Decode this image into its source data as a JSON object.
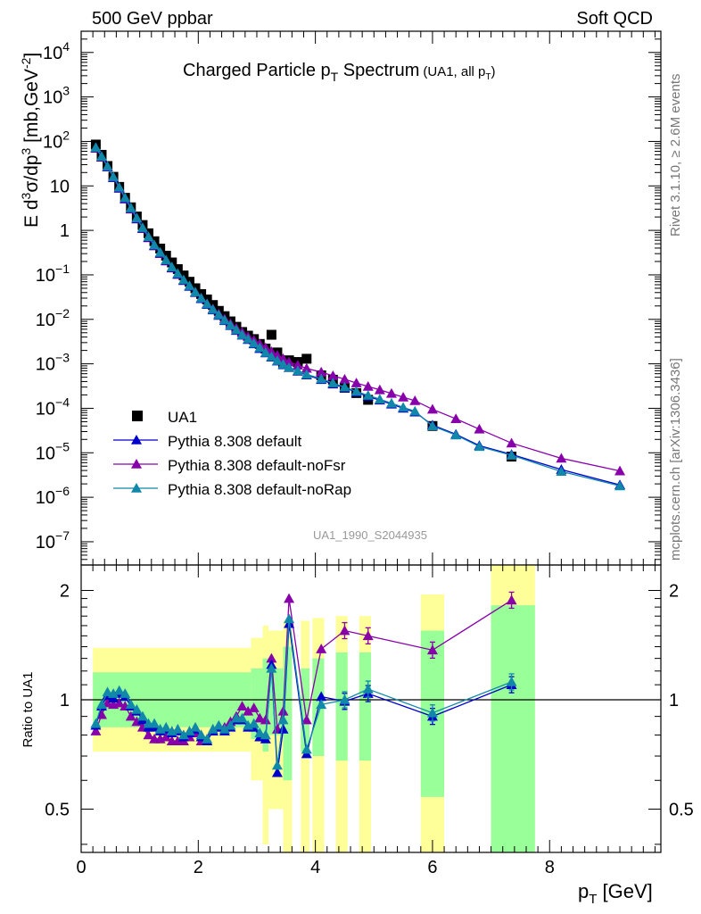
{
  "header": {
    "left": "500 GeV ppbar",
    "right": "Soft QCD"
  },
  "side_labels": {
    "rivet": "Rivet 3.1.10, ≥ 2.6M events",
    "mcplots": "mcplots.cern.ch [arXiv:1306.3436]"
  },
  "watermark": "UA1_1990_S2044935",
  "colors": {
    "data": "#000000",
    "default": "#0000cc",
    "noFsr": "#8800aa",
    "noRap": "#1188aa",
    "band_inner": "#99ff99",
    "band_outer": "#ffff99"
  },
  "chart_data": [
    {
      "type": "scatter",
      "panel": "main",
      "title": "Charged Particle p_T Spectrum",
      "title_note": "(UA1, all p_T)",
      "ylabel": "E d³σ/dp³ [mb,GeV⁻²]",
      "xlim": [
        0,
        9.9
      ],
      "ylim": [
        3e-08,
        30000.0
      ],
      "yscale": "log",
      "yticks": [
        "10^4",
        "10^3",
        "10^2",
        "10",
        "1",
        "10^-1",
        "10^-2",
        "10^-3",
        "10^-4",
        "10^-5",
        "10^-6",
        "10^-7"
      ],
      "legend_position": "bottom-left",
      "legend": [
        {
          "key": "data",
          "label": "UA1"
        },
        {
          "key": "default",
          "label": "Pythia 8.308 default"
        },
        {
          "key": "noFsr",
          "label": "Pythia 8.308 default-noFsr"
        },
        {
          "key": "noRap",
          "label": "Pythia 8.308 default-noRap"
        }
      ],
      "x": [
        0.25,
        0.35,
        0.45,
        0.55,
        0.65,
        0.75,
        0.85,
        0.95,
        1.05,
        1.15,
        1.25,
        1.35,
        1.45,
        1.55,
        1.65,
        1.75,
        1.85,
        1.95,
        2.05,
        2.15,
        2.25,
        2.35,
        2.45,
        2.55,
        2.65,
        2.75,
        2.85,
        2.95,
        3.05,
        3.15,
        3.25,
        3.35,
        3.45,
        3.55,
        3.7,
        3.85,
        4.1,
        4.3,
        4.5,
        4.7,
        4.9,
        5.1,
        5.3,
        5.5,
        5.7,
        6.0,
        6.4,
        6.8,
        7.35,
        8.2,
        9.2
      ],
      "series": [
        {
          "key": "data",
          "name": "UA1",
          "values": [
            85,
            50,
            28,
            16,
            9.5,
            5.4,
            3.3,
            2.05,
            1.32,
            0.86,
            0.57,
            0.39,
            0.27,
            0.19,
            0.135,
            0.097,
            0.07,
            0.05,
            0.037,
            0.028,
            0.021,
            0.0155,
            0.0118,
            0.009,
            0.0068,
            0.0052,
            0.0043,
            0.0036,
            0.0028,
            0.0022,
            0.0045,
            0.0018,
            0.00098,
            0.0012,
            0.0011,
            0.0013,
            0.00055,
            0.00044,
            0.00029,
            0.00022,
            0.000155,
            null,
            null,
            null,
            null,
            4e-05,
            null,
            null,
            8.2e-06,
            null,
            null
          ]
        },
        {
          "key": "default",
          "name": "Pythia 8.308 default",
          "values": [
            72,
            45,
            27,
            15.5,
            9.0,
            5.2,
            3.1,
            1.85,
            1.12,
            0.7,
            0.46,
            0.31,
            0.21,
            0.145,
            0.104,
            0.075,
            0.055,
            0.04,
            0.029,
            0.0215,
            0.0162,
            0.0122,
            0.0093,
            0.0072,
            0.0056,
            0.0044,
            0.0035,
            0.0028,
            0.0022,
            0.00175,
            0.00141,
            0.00115,
            0.00095,
            0.00082,
            0.00068,
            0.00056,
            0.00044,
            0.00035,
            0.00029,
            0.00023,
            0.000185,
            0.000152,
            0.000124,
            0.0001,
            8.2e-05,
            4.2e-05,
            2.6e-05,
            1.45e-05,
            9.2e-06,
            4.2e-06,
            1.9e-06
          ]
        },
        {
          "key": "noFsr",
          "name": "Pythia 8.308 default-noFsr",
          "values": [
            70,
            44,
            26.5,
            15.2,
            8.8,
            5.05,
            3.0,
            1.8,
            1.09,
            0.68,
            0.445,
            0.3,
            0.205,
            0.142,
            0.102,
            0.074,
            0.055,
            0.041,
            0.03,
            0.0225,
            0.0172,
            0.0132,
            0.0102,
            0.008,
            0.0063,
            0.0051,
            0.0041,
            0.0034,
            0.0028,
            0.0023,
            0.00188,
            0.00155,
            0.0013,
            0.0011,
            0.00093,
            0.00079,
            0.00065,
            0.00054,
            0.00045,
            0.00037,
            0.00031,
            0.00026,
            0.000215,
            0.000178,
            0.000148,
            9.5e-05,
            5.8e-05,
            3.4e-05,
            1.65e-05,
            7.5e-06,
            3.9e-06
          ]
        },
        {
          "key": "noRap",
          "name": "Pythia 8.308 default-noRap",
          "values": [
            73,
            46,
            27.5,
            16,
            9.3,
            5.4,
            3.2,
            1.9,
            1.15,
            0.72,
            0.47,
            0.32,
            0.215,
            0.15,
            0.107,
            0.077,
            0.057,
            0.041,
            0.03,
            0.0222,
            0.0167,
            0.0126,
            0.0096,
            0.0074,
            0.0058,
            0.0045,
            0.0036,
            0.0029,
            0.0023,
            0.0018,
            0.00145,
            0.00118,
            0.00098,
            0.00083,
            0.0007,
            0.00058,
            0.00046,
            0.00037,
            0.0003,
            0.00024,
            0.000195,
            0.00016,
            0.00013,
            0.000105,
            8.6e-05,
            4e-05,
            2.5e-05,
            1.38e-05,
            8.8e-06,
            3.8e-06,
            1.8e-06
          ]
        }
      ]
    },
    {
      "type": "line",
      "panel": "ratio",
      "ylabel": "Ratio to UA1",
      "xlabel": "p_T [GeV]",
      "xlim": [
        0,
        9.9
      ],
      "ylim": [
        0.38,
        2.35
      ],
      "yscale": "log",
      "xticks": [
        0,
        2,
        4,
        6,
        8
      ],
      "yticks": [
        0.5,
        1,
        2
      ],
      "reference_line": 1,
      "bands": [
        {
          "x0": 0.2,
          "x1": 2.9,
          "inner": [
            0.84,
            1.19
          ],
          "outer": [
            0.72,
            1.39
          ]
        },
        {
          "x0": 2.9,
          "x1": 3.1,
          "inner": [
            0.78,
            1.22
          ],
          "outer": [
            0.6,
            1.48
          ]
        },
        {
          "x0": 3.1,
          "x1": 3.2,
          "inner": [
            0.72,
            1.3
          ],
          "outer": [
            0.4,
            1.6
          ]
        },
        {
          "x0": 3.2,
          "x1": 3.45,
          "inner": [
            0.8,
            1.22
          ],
          "outer": [
            0.5,
            1.55
          ]
        },
        {
          "x0": 3.45,
          "x1": 3.6,
          "inner": [
            0.6,
            1.4
          ],
          "outer": [
            0.38,
            1.65
          ]
        },
        {
          "x0": 3.75,
          "x1": 3.9,
          "inner": [
            0.72,
            1.22
          ],
          "outer": [
            0.38,
            1.65
          ]
        },
        {
          "x0": 3.95,
          "x1": 4.15,
          "inner": [
            0.7,
            1.3
          ],
          "outer": [
            0.38,
            1.68
          ]
        },
        {
          "x0": 4.35,
          "x1": 4.55,
          "inner": [
            0.68,
            1.35
          ],
          "outer": [
            0.38,
            1.7
          ]
        },
        {
          "x0": 4.75,
          "x1": 4.95,
          "inner": [
            0.68,
            1.35
          ],
          "outer": [
            0.38,
            1.7
          ]
        },
        {
          "x0": 5.8,
          "x1": 6.2,
          "inner": [
            0.54,
            1.55
          ],
          "outer": [
            0.38,
            1.95
          ]
        },
        {
          "x0": 7.0,
          "x1": 7.75,
          "inner": [
            0.38,
            1.82
          ],
          "outer": [
            0.38,
            2.35
          ]
        }
      ],
      "x": [
        0.25,
        0.35,
        0.45,
        0.55,
        0.65,
        0.75,
        0.85,
        0.95,
        1.05,
        1.15,
        1.25,
        1.35,
        1.45,
        1.55,
        1.65,
        1.75,
        1.85,
        1.95,
        2.05,
        2.15,
        2.25,
        2.35,
        2.45,
        2.55,
        2.65,
        2.75,
        2.85,
        2.95,
        3.05,
        3.15,
        3.25,
        3.35,
        3.45,
        3.55,
        3.85,
        4.1,
        4.5,
        4.9,
        6.0,
        7.35
      ],
      "series": [
        {
          "key": "default",
          "name": "Pythia 8.308 default",
          "values": [
            0.85,
            0.96,
            1.03,
            1.01,
            1.04,
            1.02,
            0.96,
            0.93,
            0.88,
            0.84,
            0.84,
            0.82,
            0.83,
            0.81,
            0.82,
            0.79,
            0.81,
            0.83,
            0.79,
            0.77,
            0.82,
            0.84,
            0.82,
            0.84,
            0.88,
            0.88,
            0.84,
            0.84,
            0.79,
            0.78,
            1.25,
            0.63,
            0.83,
            1.62,
            0.71,
            1.02,
            0.99,
            1.04,
            0.9,
            1.1
          ]
        },
        {
          "key": "noFsr",
          "name": "Pythia 8.308 default-noFsr",
          "values": [
            0.82,
            0.91,
            0.98,
            0.97,
            0.98,
            0.96,
            0.9,
            0.87,
            0.84,
            0.8,
            0.78,
            0.78,
            0.79,
            0.77,
            0.77,
            0.77,
            0.79,
            0.81,
            0.77,
            0.77,
            0.82,
            0.84,
            0.84,
            0.87,
            0.9,
            0.96,
            0.93,
            0.95,
            0.89,
            0.88,
            1.3,
            0.83,
            0.93,
            1.9,
            0.88,
            1.38,
            1.55,
            1.5,
            1.37,
            1.88
          ]
        },
        {
          "key": "noRap",
          "name": "Pythia 8.308 default-noRap",
          "values": [
            0.86,
            0.97,
            1.05,
            1.04,
            1.06,
            1.04,
            0.97,
            0.94,
            0.9,
            0.86,
            0.86,
            0.83,
            0.84,
            0.82,
            0.83,
            0.8,
            0.82,
            0.84,
            0.8,
            0.78,
            0.83,
            0.85,
            0.83,
            0.85,
            0.89,
            0.89,
            0.85,
            0.86,
            0.81,
            0.8,
            1.22,
            0.66,
            0.88,
            1.67,
            0.73,
            0.97,
            1.0,
            1.07,
            0.92,
            1.12
          ]
        }
      ]
    }
  ]
}
